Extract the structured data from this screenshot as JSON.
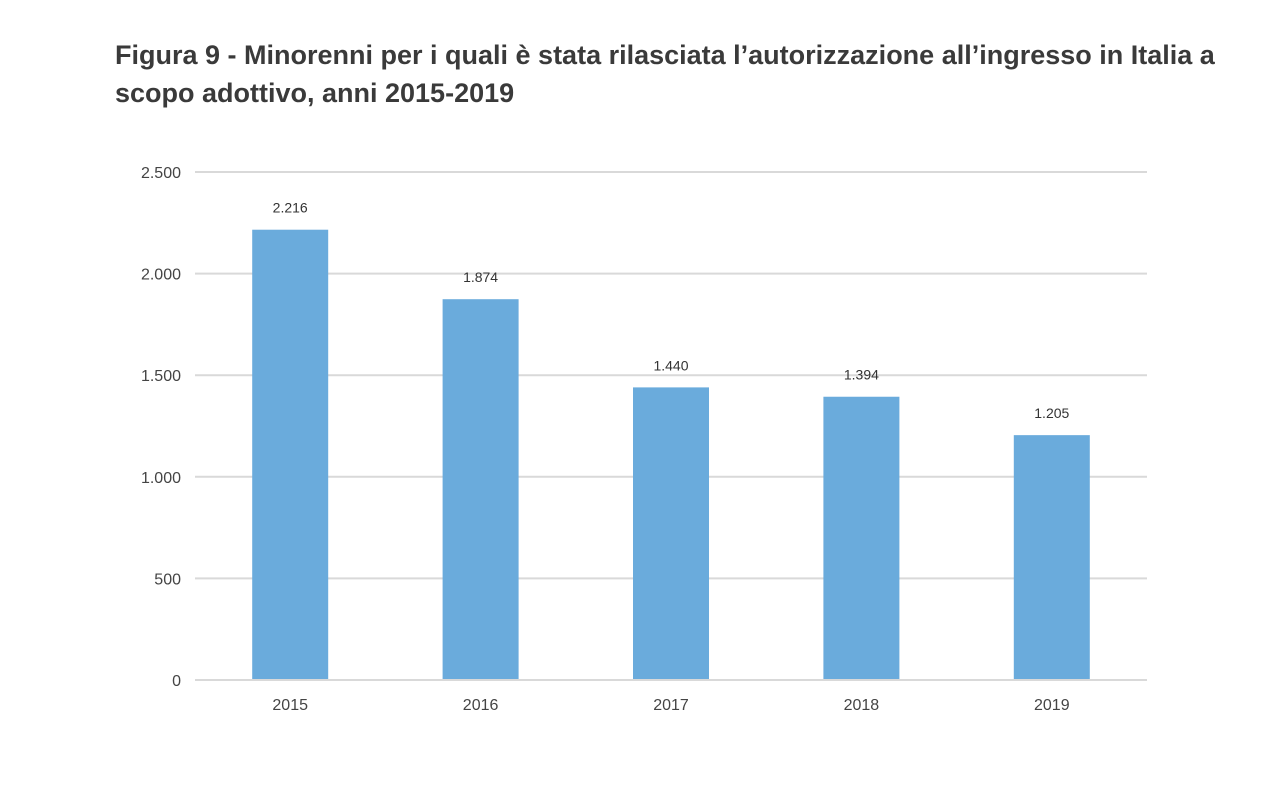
{
  "chart_data": {
    "type": "bar",
    "title": "Figura 9 - Minorenni per i quali è stata rilasciata l’autorizzazione all’ingresso in Italia a scopo adottivo, anni 2015-2019",
    "categories": [
      "2015",
      "2016",
      "2017",
      "2018",
      "2019"
    ],
    "values": [
      2216,
      1874,
      1440,
      1394,
      1205
    ],
    "data_labels": [
      "2.216",
      "1.874",
      "1.440",
      "1.394",
      "1.205"
    ],
    "y_ticks": [
      0,
      500,
      1000,
      1500,
      2000,
      2500
    ],
    "y_tick_labels": [
      "0",
      "500",
      "1.000",
      "1.500",
      "2.000",
      "2.500"
    ],
    "ylim": [
      0,
      2500
    ],
    "xlabel": "",
    "ylabel": "",
    "grid": true,
    "legend": "none",
    "bar_color": "#6aabdc",
    "grid_color": "#d9d9d9"
  }
}
